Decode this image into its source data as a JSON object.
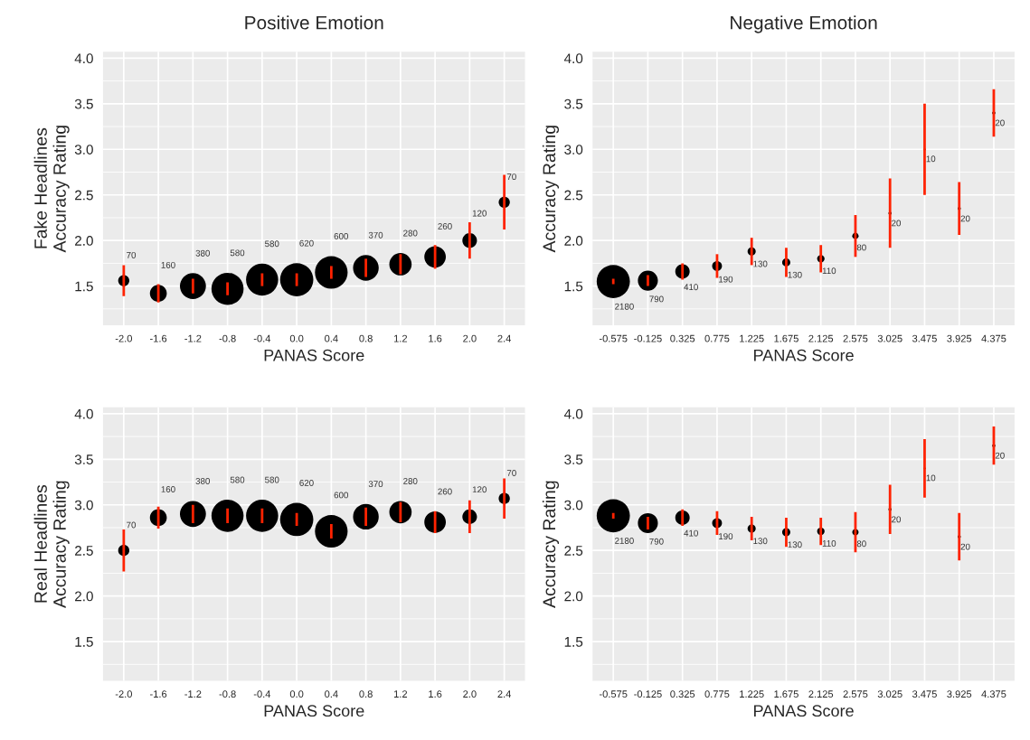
{
  "chart_data": [
    {
      "type": "bubble",
      "title": "Positive Emotion",
      "xlabel": "PANAS Score",
      "ylabel": "Fake Headlines\nAccuracy Rating",
      "categories": [
        "-2.0",
        "-1.6",
        "-1.2",
        "-0.8",
        "-0.4",
        "0.0",
        "0.4",
        "0.8",
        "1.2",
        "1.6",
        "2.0",
        "2.4"
      ],
      "ylim": [
        1.07,
        4.07
      ],
      "yticks": [
        1.5,
        {
          "value": 2,
          "label": "2.0"
        },
        2.5,
        {
          "value": 3,
          "label": "3.0"
        },
        3.5,
        {
          "value": 4,
          "label": "4.0"
        }
      ],
      "grid": true,
      "legend": false,
      "series": [
        {
          "color": "#000000",
          "values": [
            1.56,
            1.42,
            1.5,
            1.47,
            1.57,
            1.57,
            1.65,
            1.7,
            1.74,
            1.82,
            2.0,
            2.42
          ],
          "errors": [
            0.17,
            0.1,
            0.08,
            0.07,
            0.07,
            0.07,
            0.07,
            0.1,
            0.11,
            0.13,
            0.2,
            0.3
          ],
          "sizes": [
            70,
            160,
            380,
            580,
            580,
            620,
            600,
            370,
            280,
            260,
            120,
            70
          ],
          "value_labels": [
            "70",
            "160",
            "380",
            "580",
            "580",
            "620",
            "600",
            "370",
            "280",
            "260",
            "120",
            "70"
          ]
        }
      ]
    },
    {
      "type": "bubble",
      "title": "Negative Emotion",
      "xlabel": "PANAS Score",
      "ylabel": "Accuracy Rating",
      "categories": [
        "-0.575",
        "-0.125",
        "0.325",
        "0.775",
        "1.225",
        "1.675",
        "2.125",
        "2.575",
        "3.025",
        "3.475",
        "3.925",
        "4.375"
      ],
      "ylim": [
        1.07,
        4.07
      ],
      "yticks": [
        1.5,
        {
          "value": 2,
          "label": "2.0"
        },
        2.5,
        {
          "value": 3,
          "label": "3.0"
        },
        3.5,
        {
          "value": 4,
          "label": "4.0"
        }
      ],
      "grid": true,
      "legend": false,
      "series": [
        {
          "color": "#000000",
          "values": [
            1.55,
            1.56,
            1.66,
            1.72,
            1.88,
            1.76,
            1.8,
            2.05,
            2.3,
            3.0,
            2.35,
            3.4
          ],
          "errors": [
            0.03,
            0.06,
            0.09,
            0.13,
            0.15,
            0.16,
            0.15,
            0.23,
            0.38,
            0.5,
            0.29,
            0.26
          ],
          "sizes": [
            2180,
            790,
            410,
            190,
            130,
            130,
            110,
            80,
            20,
            10,
            20,
            20
          ],
          "value_labels": [
            "2180",
            "790",
            "410",
            "190",
            "130",
            "130",
            "110",
            "80",
            "20",
            "10",
            "20",
            "20"
          ]
        }
      ]
    },
    {
      "type": "bubble",
      "xlabel": "PANAS Score",
      "ylabel": "Real Headlines\nAccuracy Rating",
      "categories": [
        "-2.0",
        "-1.6",
        "-1.2",
        "-0.8",
        "-0.4",
        "0.0",
        "0.4",
        "0.8",
        "1.2",
        "1.6",
        "2.0",
        "2.4"
      ],
      "ylim": [
        1.07,
        4.07
      ],
      "yticks": [
        1.5,
        {
          "value": 2,
          "label": "2.0"
        },
        2.5,
        {
          "value": 3,
          "label": "3.0"
        },
        3.5,
        {
          "value": 4,
          "label": "4.0"
        }
      ],
      "grid": true,
      "legend": false,
      "series": [
        {
          "color": "#000000",
          "values": [
            2.5,
            2.86,
            2.9,
            2.88,
            2.88,
            2.84,
            2.71,
            2.87,
            2.92,
            2.81,
            2.87,
            3.07
          ],
          "errors": [
            0.23,
            0.12,
            0.1,
            0.08,
            0.08,
            0.07,
            0.08,
            0.1,
            0.11,
            0.12,
            0.18,
            0.22
          ],
          "sizes": [
            70,
            160,
            380,
            580,
            580,
            620,
            600,
            370,
            280,
            260,
            120,
            70
          ],
          "value_labels": [
            "70",
            "160",
            "380",
            "580",
            "580",
            "620",
            "600",
            "370",
            "280",
            "260",
            "120",
            "70"
          ]
        }
      ]
    },
    {
      "type": "bubble",
      "xlabel": "PANAS Score",
      "ylabel": "Accuracy Rating",
      "categories": [
        "-0.575",
        "-0.125",
        "0.325",
        "0.775",
        "1.225",
        "1.675",
        "2.125",
        "2.575",
        "3.025",
        "3.475",
        "3.925",
        "4.375"
      ],
      "ylim": [
        1.07,
        4.07
      ],
      "yticks": [
        1.5,
        {
          "value": 2,
          "label": "2.0"
        },
        2.5,
        {
          "value": 3,
          "label": "3.0"
        },
        3.5,
        {
          "value": 4,
          "label": "4.0"
        }
      ],
      "grid": true,
      "legend": false,
      "series": [
        {
          "color": "#000000",
          "values": [
            2.88,
            2.8,
            2.86,
            2.8,
            2.74,
            2.7,
            2.71,
            2.7,
            2.95,
            3.4,
            2.65,
            3.65
          ],
          "errors": [
            0.03,
            0.07,
            0.09,
            0.13,
            0.13,
            0.16,
            0.15,
            0.22,
            0.27,
            0.32,
            0.26,
            0.21
          ],
          "sizes": [
            2180,
            790,
            410,
            190,
            130,
            130,
            110,
            80,
            20,
            10,
            20,
            20
          ],
          "value_labels": [
            "2180",
            "790",
            "410",
            "190",
            "130",
            "130",
            "110",
            "80",
            "20",
            "10",
            "20",
            "20"
          ]
        }
      ]
    }
  ]
}
